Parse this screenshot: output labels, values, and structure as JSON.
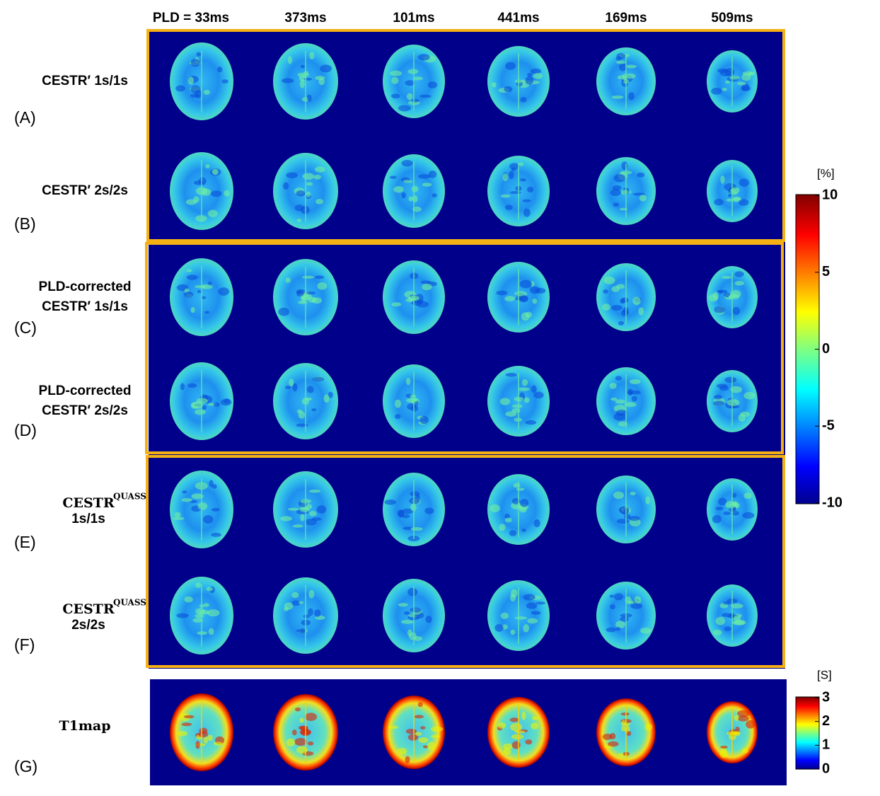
{
  "columns": [
    "PLD = 33ms",
    "373ms",
    "101ms",
    "441ms",
    "169ms",
    "509ms"
  ],
  "rows": [
    {
      "letter": "(A)",
      "lines": [
        "CESTR′ 1s/1s"
      ]
    },
    {
      "letter": "(B)",
      "lines": [
        "CESTR′ 2s/2s"
      ]
    },
    {
      "letter": "(C)",
      "lines": [
        "PLD-corrected",
        "CESTR′ 1s/1s"
      ]
    },
    {
      "letter": "(D)",
      "lines": [
        "PLD-corrected",
        "CESTR′ 2s/2s"
      ]
    },
    {
      "letter": "(E)",
      "lines": [
        "CESTR",
        "1s/1s"
      ],
      "superscript": "QUASS"
    },
    {
      "letter": "(F)",
      "lines": [
        "CESTR",
        "2s/2s"
      ],
      "superscript": "QUASS"
    },
    {
      "letter": "(G)",
      "lines": [
        "T1map"
      ]
    }
  ],
  "colorbar_cest": {
    "unit": "[%]",
    "ticks": [
      10,
      5,
      0,
      -5,
      -10
    ]
  },
  "colorbar_t1": {
    "unit": "[S]",
    "ticks": [
      3,
      2,
      1,
      0
    ]
  }
}
